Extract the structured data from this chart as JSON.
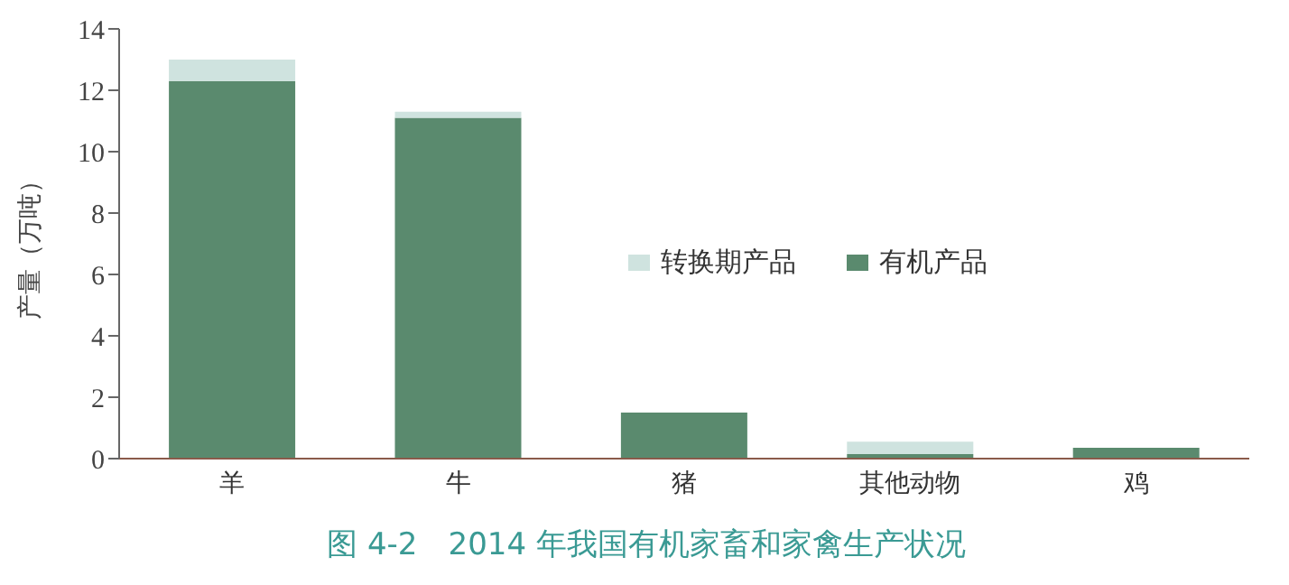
{
  "chart_data": {
    "type": "bar",
    "title": "图 4-2　2014 年我国有机家畜和家禽生产状况",
    "ylabel": "产量（万吨）",
    "categories": [
      "羊",
      "牛",
      "猪",
      "其他动物",
      "鸡"
    ],
    "series": [
      {
        "name": "有机产品",
        "color": "#5a8a6e",
        "values": [
          12.3,
          11.1,
          1.5,
          0.15,
          0.35
        ]
      },
      {
        "name": "转换期产品",
        "color": "#cfe3df",
        "values": [
          0.7,
          0.2,
          null,
          0.4,
          null
        ]
      }
    ],
    "stacked": true,
    "ylim": [
      0,
      14
    ],
    "yticks": [
      0,
      2,
      4,
      6,
      8,
      10,
      12,
      14
    ],
    "grid": false,
    "legend": "right"
  }
}
